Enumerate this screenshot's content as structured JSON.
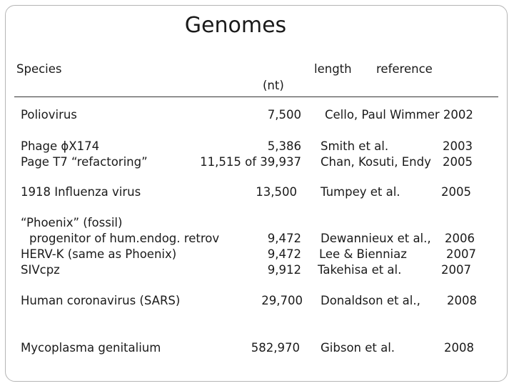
{
  "title": "Genomes",
  "headers": {
    "species": "Species",
    "length": "length",
    "unit": "(nt)",
    "reference": "reference"
  },
  "rows": [
    {
      "species": "Poliovirus",
      "length": "7,500",
      "reference": "Cello, Paul Wimmer 2002",
      "year": ""
    },
    {
      "species": "Phage ϕX174",
      "length": "5,386",
      "reference": "Smith et al.",
      "year": "2003"
    },
    {
      "species": "Page T7 “refactoring”",
      "length": "11,515 of 39,937",
      "reference": "Chan, Kosuti, Endy",
      "year": "2005"
    },
    {
      "species": "1918 Influenza virus",
      "length": "13,500",
      "reference": "Tumpey et al.",
      "year": "2005"
    },
    {
      "species": "“Phoenix” (fossil)",
      "length": "",
      "reference": "",
      "year": ""
    },
    {
      "species": "progenitor of hum.endog. retrov",
      "length": "9,472",
      "reference": "Dewannieux et al.,",
      "year": "2006"
    },
    {
      "species": "HERV-K (same as Phoenix)",
      "length": "9,472",
      "reference": "Lee & Bienniaz",
      "year": "2007"
    },
    {
      "species": "SIVcpz",
      "length": "9,912",
      "reference": "Takehisa et al.",
      "year": "2007"
    },
    {
      "species": "Human coronavirus (SARS)",
      "length": "29,700",
      "reference": "Donaldson et al.,",
      "year": "2008"
    },
    {
      "species": "Mycoplasma genitalium",
      "length": "582,970",
      "reference": "Gibson et al.",
      "year": "2008"
    }
  ]
}
